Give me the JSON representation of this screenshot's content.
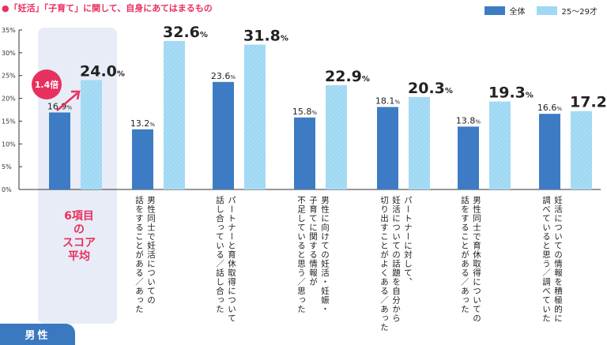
{
  "title": "●「妊活」「子育て」に関して、自身にあてはまるもの",
  "legend": [
    {
      "label": "全体",
      "color": "#3d7cc4"
    },
    {
      "label": "25〜29才",
      "color": "#9fd8f3"
    }
  ],
  "badge": "男性",
  "avg_label": "6項目の\nスコア平均",
  "ratio_badge": "1.4倍",
  "chart_data": {
    "type": "bar",
    "ylim": [
      0,
      35
    ],
    "yticks": [
      "0%",
      "5%",
      "10%",
      "15%",
      "20%",
      "25%",
      "30%",
      "35%"
    ],
    "categories": [
      "6項目のスコア平均",
      "男性同士で妊活についての\n話をすることがある／あった",
      "パートナーと育休取得について\n話し合っている／話し合った",
      "男性に向けての妊活・妊娠・\n子育てに関する情報が\n不足していると思う／思った",
      "パートナーに対して、\n妊活についての話題を自分から\n切り出すことがよくある／あった",
      "男性同士で育休取得についての\n話をすることがある／あった",
      "妊活についての情報を積極的に\n調べていると思う／調べていた"
    ],
    "series": [
      {
        "name": "全体",
        "values": [
          16.9,
          13.2,
          23.6,
          15.8,
          18.1,
          13.8,
          16.6
        ]
      },
      {
        "name": "25〜29才",
        "values": [
          24.0,
          32.6,
          31.8,
          22.9,
          20.3,
          19.3,
          17.2
        ]
      }
    ]
  }
}
